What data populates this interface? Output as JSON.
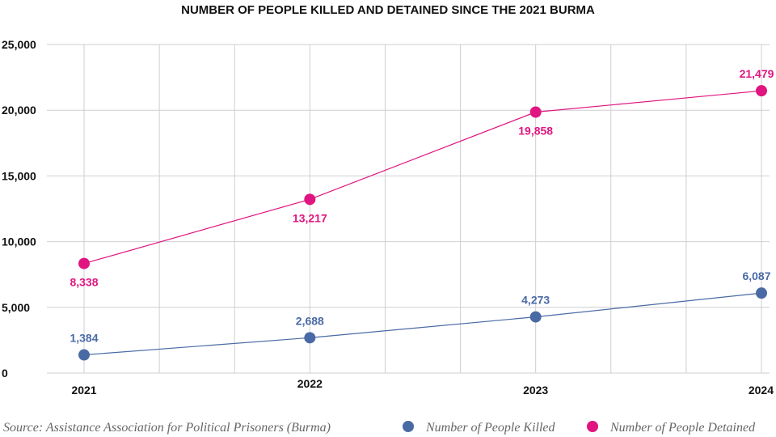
{
  "chart_data": {
    "type": "line",
    "title": "NUMBER OF PEOPLE KILLED AND DETAINED SINCE THE 2021 BURMA",
    "x": [
      2021,
      2022,
      2023,
      2024
    ],
    "x_tick_labels": [
      "2021",
      "2022",
      "2023",
      "2024"
    ],
    "y_tick_labels": [
      "0",
      "5,000",
      "10,000",
      "15,000",
      "20,000",
      "25,000"
    ],
    "y_ticks": [
      0,
      5000,
      10000,
      15000,
      20000,
      25000
    ],
    "ylim": [
      0,
      25000
    ],
    "grid": true,
    "legend_position": "bottom-right",
    "series": [
      {
        "name": "Number of People Killed",
        "color": "#4a6aa5",
        "values": [
          1384,
          2688,
          4273,
          6087
        ],
        "labels": [
          "1,384",
          "2,688",
          "4,273",
          "6,087"
        ]
      },
      {
        "name": "Number of People Detained",
        "color": "#e0157f",
        "values": [
          8338,
          13217,
          19858,
          21479
        ],
        "labels": [
          "8,338",
          "13,217",
          "19,858",
          "21,479"
        ]
      }
    ],
    "source": "Source: Assistance Association for Political Prisoners (Burma)"
  }
}
